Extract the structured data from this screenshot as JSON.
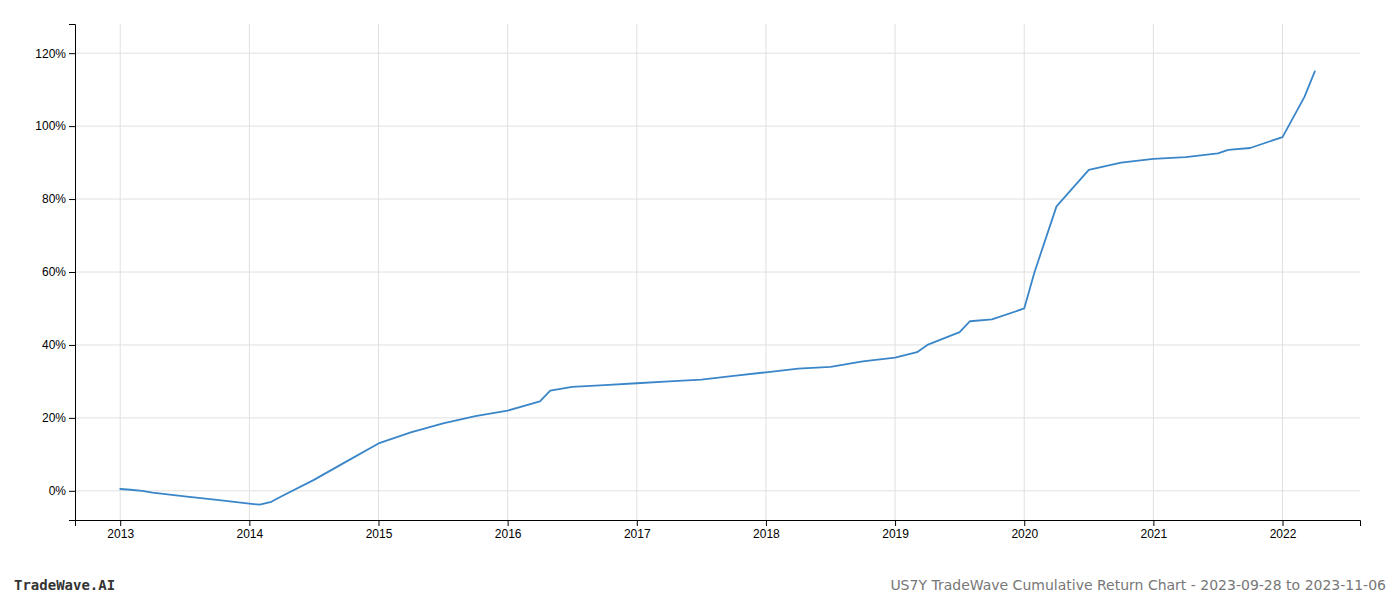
{
  "chart_data": {
    "type": "line",
    "annotations": [
      "TradeWave.AI",
      "US7Y TradeWave Cumulative Return Chart - 2023-09-28 to 2023-11-06"
    ],
    "color": "#3a86c8",
    "x": [
      2013.0,
      2013.08,
      2013.17,
      2013.25,
      2013.5,
      2013.75,
      2014.0,
      2014.08,
      2014.17,
      2014.25,
      2014.5,
      2014.75,
      2015.0,
      2015.25,
      2015.5,
      2015.75,
      2016.0,
      2016.25,
      2016.33,
      2016.5,
      2016.75,
      2017.0,
      2017.25,
      2017.5,
      2017.75,
      2018.0,
      2018.25,
      2018.5,
      2018.75,
      2019.0,
      2019.17,
      2019.25,
      2019.5,
      2019.58,
      2019.75,
      2020.0,
      2020.08,
      2020.25,
      2020.5,
      2020.75,
      2021.0,
      2021.25,
      2021.5,
      2021.58,
      2021.75,
      2022.0,
      2022.17,
      2022.25
    ],
    "values": [
      0.5,
      0.3,
      0.0,
      -0.5,
      -1.5,
      -2.5,
      -3.5,
      -3.8,
      -3.0,
      -1.5,
      3.0,
      8.0,
      13.0,
      16.0,
      18.5,
      20.5,
      22.0,
      24.5,
      27.5,
      28.5,
      29.0,
      29.5,
      30.0,
      30.5,
      31.5,
      32.5,
      33.5,
      34.0,
      35.5,
      36.5,
      38.0,
      40.0,
      43.5,
      46.5,
      47.0,
      50.0,
      60.0,
      78.0,
      88.0,
      90.0,
      91.0,
      91.5,
      92.5,
      93.5,
      94.0,
      97.0,
      108.0,
      115.0
    ],
    "xlim": [
      2012.65,
      2022.6
    ],
    "ylim": [
      -8,
      128
    ],
    "xticks": [
      2013,
      2014,
      2015,
      2016,
      2017,
      2018,
      2019,
      2020,
      2021,
      2022
    ],
    "yticks": [
      {
        "value": 0,
        "label": "0%"
      },
      {
        "value": 20,
        "label": "20%"
      },
      {
        "value": 40,
        "label": "40%"
      },
      {
        "value": 60,
        "label": "60%"
      },
      {
        "value": 80,
        "label": "80%"
      },
      {
        "value": 100,
        "label": "100%"
      },
      {
        "value": 120,
        "label": "120%"
      }
    ],
    "grid": true
  }
}
